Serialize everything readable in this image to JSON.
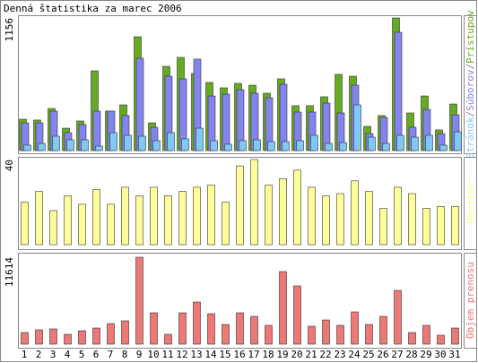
{
  "chart_data": {
    "type": "bar",
    "title": "Denná štatistika za marec 2006",
    "legend_separator": "/",
    "categories": [
      "1",
      "2",
      "3",
      "4",
      "5",
      "6",
      "7",
      "8",
      "9",
      "10",
      "11",
      "12",
      "13",
      "14",
      "15",
      "16",
      "17",
      "18",
      "19",
      "20",
      "21",
      "22",
      "23",
      "24",
      "25",
      "26",
      "27",
      "28",
      "29",
      "30",
      "31"
    ],
    "category_colors": [
      "#000000",
      "#000000",
      "#000000",
      "#66aa22",
      "#66aa22",
      "#000000",
      "#000000",
      "#000000",
      "#000000",
      "#000000",
      "#66aa22",
      "#66aa22",
      "#000000",
      "#000000",
      "#000000",
      "#000000",
      "#000000",
      "#66aa22",
      "#66aa22",
      "#000000",
      "#000000",
      "#000000",
      "#000000",
      "#000000",
      "#66aa22",
      "#66aa22",
      "#000000",
      "#000000",
      "#000000",
      "#000000",
      "#000000"
    ],
    "panels": [
      {
        "ylim": [
          0,
          1156
        ],
        "yticks": [
          1156
        ],
        "series": [
          {
            "name": "Prístupov",
            "color": "#66aa22",
            "values": [
              273,
              266,
              367,
              195,
              258,
              695,
              344,
              398,
              992,
              242,
              734,
              812,
              672,
              594,
              547,
              586,
              570,
              500,
              625,
              391,
              391,
              469,
              664,
              648,
              211,
              305,
              1156,
              328,
              476,
              180,
              406
            ]
          },
          {
            "name": "Súborov",
            "color": "#8484ee",
            "values": [
              242,
              242,
              344,
              156,
              227,
              344,
              344,
              305,
              805,
              203,
              648,
              625,
              797,
              476,
              492,
              531,
              500,
              461,
              578,
              336,
              336,
              414,
              328,
              570,
              148,
              289,
              1031,
              203,
              359,
              148,
              312
            ]
          },
          {
            "name": "Stránok",
            "color": "#80c8f8",
            "values": [
              47,
              62,
              125,
              94,
              94,
              39,
              156,
              133,
              125,
              86,
              156,
              102,
              195,
              86,
              55,
              86,
              94,
              78,
              78,
              86,
              133,
              62,
              70,
              398,
              117,
              62,
              133,
              117,
              133,
              47,
              164
            ]
          }
        ]
      },
      {
        "ylim": [
          0,
          40
        ],
        "yticks": [
          40
        ],
        "series": [
          {
            "name": "Návštev",
            "color": "#ffff99",
            "values": [
              20,
              25,
              16,
              23,
              19,
              26,
              19,
              27,
              23,
              27,
              23,
              25,
              27,
              28,
              20,
              37,
              40,
              28,
              31,
              35,
              27,
              23,
              24,
              30,
              25,
              17,
              27,
              24,
              17,
              18,
              18
            ]
          }
        ]
      },
      {
        "ylim": [
          0,
          11614
        ],
        "yticks": [
          11614
        ],
        "series": [
          {
            "name": "Objem prenosu",
            "color": "#ee7777",
            "values": [
              1557,
              1916,
              2035,
              1317,
              1796,
              2155,
              2754,
              3113,
              11614,
              4191,
              1317,
              4191,
              5627,
              4071,
              2634,
              4191,
              3712,
              2514,
              9698,
              7783,
              2395,
              3233,
              2514,
              4310,
              2634,
              3712,
              7184,
              1557,
              2514,
              1197,
              2155
            ]
          }
        ]
      }
    ]
  }
}
